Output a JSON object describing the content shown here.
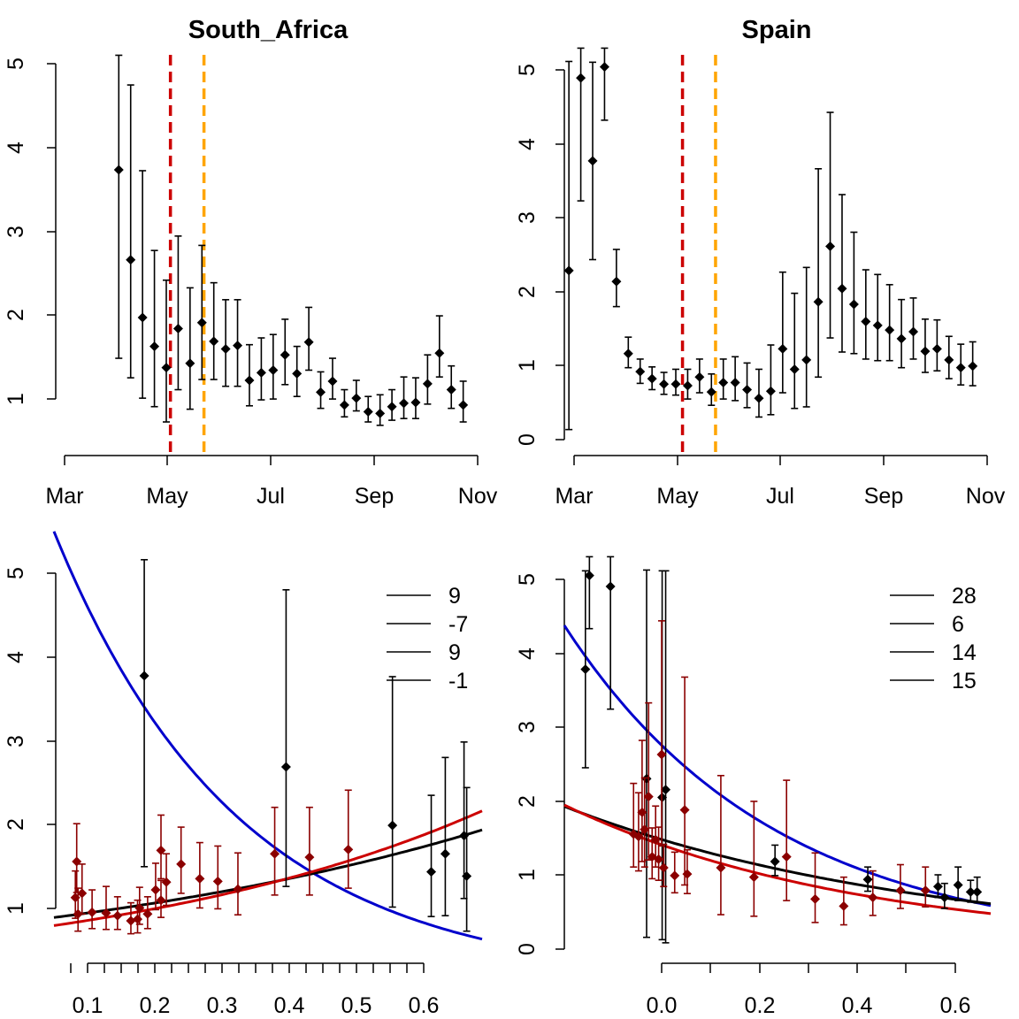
{
  "chart_data": [
    {
      "id": "sa_time",
      "type": "scatter",
      "title": "South_Africa",
      "x_ticks": [
        "Mar",
        "May",
        "Jul",
        "Sep",
        "Nov"
      ],
      "y_ticks": [
        "1",
        "2",
        "3",
        "4",
        "5"
      ],
      "xlim": [
        0,
        8
      ],
      "ylim": [
        0.35,
        5.05
      ],
      "grid": false,
      "vlines": [
        {
          "x": 2.05,
          "color": "#CC0000",
          "dash": true
        },
        {
          "x": 2.7,
          "color": "#FFA500",
          "dash": true
        }
      ],
      "points": [
        {
          "x": 1.05,
          "y": 3.57,
          "lo": 1.35,
          "hi": 4.92
        },
        {
          "x": 1.28,
          "y": 2.51,
          "lo": 1.12,
          "hi": 4.57
        },
        {
          "x": 1.51,
          "y": 1.83,
          "lo": 0.88,
          "hi": 3.56
        },
        {
          "x": 1.74,
          "y": 1.49,
          "lo": 0.78,
          "hi": 2.62
        },
        {
          "x": 1.97,
          "y": 1.24,
          "lo": 0.6,
          "hi": 2.27
        },
        {
          "x": 2.2,
          "y": 1.7,
          "lo": 0.98,
          "hi": 2.79
        },
        {
          "x": 2.43,
          "y": 1.29,
          "lo": 0.75,
          "hi": 2.18
        },
        {
          "x": 2.66,
          "y": 1.77,
          "lo": 1.1,
          "hi": 2.68
        },
        {
          "x": 2.89,
          "y": 1.55,
          "lo": 1.1,
          "hi": 2.24
        },
        {
          "x": 3.12,
          "y": 1.46,
          "lo": 1.02,
          "hi": 2.04
        },
        {
          "x": 3.35,
          "y": 1.5,
          "lo": 1.02,
          "hi": 2.04
        },
        {
          "x": 3.58,
          "y": 1.09,
          "lo": 0.79,
          "hi": 1.51
        },
        {
          "x": 3.81,
          "y": 1.18,
          "lo": 0.86,
          "hi": 1.59
        },
        {
          "x": 4.04,
          "y": 1.21,
          "lo": 0.87,
          "hi": 1.63
        },
        {
          "x": 4.27,
          "y": 1.39,
          "lo": 1.04,
          "hi": 1.81
        },
        {
          "x": 4.5,
          "y": 1.17,
          "lo": 0.9,
          "hi": 1.49
        },
        {
          "x": 4.73,
          "y": 1.54,
          "lo": 1.21,
          "hi": 1.95
        },
        {
          "x": 4.96,
          "y": 0.95,
          "lo": 0.76,
          "hi": 1.19
        },
        {
          "x": 5.19,
          "y": 1.08,
          "lo": 0.87,
          "hi": 1.35
        },
        {
          "x": 5.42,
          "y": 0.8,
          "lo": 0.66,
          "hi": 0.98
        },
        {
          "x": 5.65,
          "y": 0.88,
          "lo": 0.73,
          "hi": 1.09
        },
        {
          "x": 5.88,
          "y": 0.72,
          "lo": 0.6,
          "hi": 0.9
        },
        {
          "x": 6.11,
          "y": 0.7,
          "lo": 0.56,
          "hi": 0.92
        },
        {
          "x": 6.34,
          "y": 0.78,
          "lo": 0.62,
          "hi": 0.98
        },
        {
          "x": 6.57,
          "y": 0.82,
          "lo": 0.64,
          "hi": 1.13
        },
        {
          "x": 6.8,
          "y": 0.83,
          "lo": 0.64,
          "hi": 1.12
        },
        {
          "x": 7.03,
          "y": 1.05,
          "lo": 0.81,
          "hi": 1.39
        },
        {
          "x": 7.26,
          "y": 1.41,
          "lo": 1.13,
          "hi": 1.85
        },
        {
          "x": 7.49,
          "y": 0.98,
          "lo": 0.76,
          "hi": 1.26
        },
        {
          "x": 7.72,
          "y": 0.8,
          "lo": 0.6,
          "hi": 1.08
        }
      ]
    },
    {
      "id": "es_time",
      "type": "scatter",
      "title": "Spain",
      "x_ticks": [
        "Mar",
        "May",
        "Jul",
        "Sep",
        "Nov"
      ],
      "y_ticks": [
        "0",
        "1",
        "2",
        "3",
        "4",
        "5"
      ],
      "xlim": [
        0,
        8
      ],
      "ylim": [
        -0.1,
        5.05
      ],
      "grid": false,
      "vlines": [
        {
          "x": 2.1,
          "color": "#CC0000",
          "dash": true
        },
        {
          "x": 2.74,
          "color": "#FFA500",
          "dash": true
        }
      ],
      "points": [
        {
          "x": -0.1,
          "y": 2.16,
          "lo": 0.13,
          "hi": 4.83
        },
        {
          "x": 0.13,
          "y": 4.62,
          "lo": 3.05,
          "hi": 5.0
        },
        {
          "x": 0.36,
          "y": 3.56,
          "lo": 2.3,
          "hi": 4.82
        },
        {
          "x": 0.59,
          "y": 4.76,
          "lo": 4.08,
          "hi": 5.0
        },
        {
          "x": 0.82,
          "y": 2.02,
          "lo": 1.7,
          "hi": 2.43
        },
        {
          "x": 1.05,
          "y": 1.1,
          "lo": 0.92,
          "hi": 1.31
        },
        {
          "x": 1.28,
          "y": 0.87,
          "lo": 0.72,
          "hi": 1.03
        },
        {
          "x": 1.51,
          "y": 0.78,
          "lo": 0.64,
          "hi": 0.93
        },
        {
          "x": 1.74,
          "y": 0.71,
          "lo": 0.58,
          "hi": 0.86
        },
        {
          "x": 1.97,
          "y": 0.71,
          "lo": 0.57,
          "hi": 0.9
        },
        {
          "x": 2.2,
          "y": 0.69,
          "lo": 0.52,
          "hi": 0.9
        },
        {
          "x": 2.43,
          "y": 0.8,
          "lo": 0.6,
          "hi": 1.03
        },
        {
          "x": 2.66,
          "y": 0.61,
          "lo": 0.44,
          "hi": 0.84
        },
        {
          "x": 2.89,
          "y": 0.73,
          "lo": 0.52,
          "hi": 1.03
        },
        {
          "x": 3.12,
          "y": 0.73,
          "lo": 0.5,
          "hi": 1.06
        },
        {
          "x": 3.35,
          "y": 0.64,
          "lo": 0.41,
          "hi": 0.98
        },
        {
          "x": 3.58,
          "y": 0.53,
          "lo": 0.29,
          "hi": 0.9
        },
        {
          "x": 3.81,
          "y": 0.62,
          "lo": 0.32,
          "hi": 1.21
        },
        {
          "x": 4.04,
          "y": 1.16,
          "lo": 0.6,
          "hi": 2.14
        },
        {
          "x": 4.27,
          "y": 0.9,
          "lo": 0.4,
          "hi": 1.87
        },
        {
          "x": 4.5,
          "y": 1.02,
          "lo": 0.42,
          "hi": 2.2
        },
        {
          "x": 4.73,
          "y": 1.76,
          "lo": 0.8,
          "hi": 3.46
        },
        {
          "x": 4.96,
          "y": 2.47,
          "lo": 1.3,
          "hi": 4.18
        },
        {
          "x": 5.19,
          "y": 1.93,
          "lo": 1.12,
          "hi": 3.13
        },
        {
          "x": 5.42,
          "y": 1.73,
          "lo": 1.1,
          "hi": 2.65
        },
        {
          "x": 5.65,
          "y": 1.51,
          "lo": 1.03,
          "hi": 2.17
        },
        {
          "x": 5.88,
          "y": 1.46,
          "lo": 1.01,
          "hi": 2.11
        },
        {
          "x": 6.11,
          "y": 1.4,
          "lo": 1.01,
          "hi": 1.98
        },
        {
          "x": 6.34,
          "y": 1.29,
          "lo": 0.92,
          "hi": 1.79
        },
        {
          "x": 6.57,
          "y": 1.38,
          "lo": 1.03,
          "hi": 1.81
        },
        {
          "x": 6.8,
          "y": 1.13,
          "lo": 0.86,
          "hi": 1.54
        },
        {
          "x": 7.03,
          "y": 1.16,
          "lo": 0.88,
          "hi": 1.53
        },
        {
          "x": 7.26,
          "y": 1.02,
          "lo": 0.78,
          "hi": 1.32
        },
        {
          "x": 7.49,
          "y": 0.92,
          "lo": 0.7,
          "hi": 1.22
        },
        {
          "x": 7.72,
          "y": 0.94,
          "lo": 0.69,
          "hi": 1.25
        }
      ]
    },
    {
      "id": "sa_fit",
      "type": "scatter",
      "title": "",
      "x_ticks": [
        "0.1",
        "0.2",
        "0.3",
        "0.4",
        "0.5",
        "0.6"
      ],
      "x_tick_values": [
        0.1,
        0.2,
        0.3,
        0.4,
        0.5,
        0.6
      ],
      "y_ticks": [
        "1",
        "2",
        "3",
        "4",
        "5"
      ],
      "xlim": [
        0.05,
        0.69
      ],
      "ylim": [
        0.35,
        5.0
      ],
      "grid": false,
      "legend": {
        "position": "top-right",
        "entries": [
          "9",
          "-7",
          "9",
          "-1"
        ]
      },
      "series": [
        {
          "color": "#000000",
          "points": [
            {
              "x": 0.185,
              "y": 3.57,
              "lo": 1.35,
              "hi": 4.92
            },
            {
              "x": 0.397,
              "y": 2.51,
              "lo": 1.12,
              "hi": 4.57
            },
            {
              "x": 0.556,
              "y": 1.83,
              "lo": 0.88,
              "hi": 3.56
            },
            {
              "x": 0.614,
              "y": 1.29,
              "lo": 0.77,
              "hi": 2.18
            },
            {
              "x": 0.635,
              "y": 1.5,
              "lo": 0.78,
              "hi": 2.62
            },
            {
              "x": 0.663,
              "y": 1.71,
              "lo": 0.98,
              "hi": 2.8
            },
            {
              "x": 0.667,
              "y": 1.24,
              "lo": 0.6,
              "hi": 2.27
            }
          ]
        },
        {
          "color": "#8B0000",
          "points": [
            {
              "x": 0.084,
              "y": 1.41,
              "lo": 1.05,
              "hi": 1.85
            },
            {
              "x": 0.082,
              "y": 0.99,
              "lo": 0.75,
              "hi": 1.3
            },
            {
              "x": 0.086,
              "y": 0.8,
              "lo": 0.6,
              "hi": 1.1
            },
            {
              "x": 0.092,
              "y": 1.04,
              "lo": 0.8,
              "hi": 1.38
            },
            {
              "x": 0.107,
              "y": 0.82,
              "lo": 0.63,
              "hi": 1.08
            },
            {
              "x": 0.128,
              "y": 0.81,
              "lo": 0.62,
              "hi": 1.12
            },
            {
              "x": 0.145,
              "y": 0.78,
              "lo": 0.62,
              "hi": 1.0
            },
            {
              "x": 0.165,
              "y": 0.72,
              "lo": 0.57,
              "hi": 0.93
            },
            {
              "x": 0.175,
              "y": 0.74,
              "lo": 0.58,
              "hi": 0.96
            },
            {
              "x": 0.178,
              "y": 0.87,
              "lo": 0.68,
              "hi": 1.11
            },
            {
              "x": 0.19,
              "y": 0.8,
              "lo": 0.63,
              "hi": 1.0
            },
            {
              "x": 0.202,
              "y": 1.08,
              "lo": 0.85,
              "hi": 1.39
            },
            {
              "x": 0.21,
              "y": 1.54,
              "lo": 1.21,
              "hi": 1.95
            },
            {
              "x": 0.21,
              "y": 0.96,
              "lo": 0.76,
              "hi": 1.19
            },
            {
              "x": 0.218,
              "y": 1.17,
              "lo": 0.9,
              "hi": 1.5
            },
            {
              "x": 0.24,
              "y": 1.38,
              "lo": 1.04,
              "hi": 1.81
            },
            {
              "x": 0.268,
              "y": 1.21,
              "lo": 0.87,
              "hi": 1.63
            },
            {
              "x": 0.295,
              "y": 1.18,
              "lo": 0.86,
              "hi": 1.59
            },
            {
              "x": 0.325,
              "y": 1.09,
              "lo": 0.79,
              "hi": 1.51
            },
            {
              "x": 0.38,
              "y": 1.5,
              "lo": 1.02,
              "hi": 2.04
            },
            {
              "x": 0.432,
              "y": 1.46,
              "lo": 1.02,
              "hi": 2.04
            },
            {
              "x": 0.49,
              "y": 1.55,
              "lo": 1.1,
              "hi": 2.24
            }
          ]
        }
      ],
      "curves": [
        {
          "color": "#0000CC",
          "a": 6.3,
          "b": -3.65
        },
        {
          "color": "#000000",
          "a": 0.71,
          "b": 1.33
        },
        {
          "color": "#CC0000",
          "a": 0.61,
          "b": 1.72
        }
      ]
    },
    {
      "id": "es_fit",
      "type": "scatter",
      "title": "",
      "x_ticks": [
        "0.0",
        "0.2",
        "0.4",
        "0.6"
      ],
      "x_tick_values": [
        0.0,
        0.2,
        0.4,
        0.6
      ],
      "y_ticks": [
        "0",
        "1",
        "2",
        "3",
        "4",
        "5"
      ],
      "xlim": [
        -0.2,
        0.65
      ],
      "ylim": [
        -0.1,
        5.05
      ],
      "grid": false,
      "legend": {
        "position": "top-right",
        "entries": [
          "28",
          "6",
          "14",
          "15"
        ]
      },
      "series": [
        {
          "color": "#000000",
          "points": [
            {
              "x": -0.158,
              "y": 3.56,
              "lo": 2.3,
              "hi": 4.82
            },
            {
              "x": -0.15,
              "y": 4.76,
              "lo": 4.08,
              "hi": 5.0
            },
            {
              "x": -0.108,
              "y": 4.62,
              "lo": 3.05,
              "hi": 5.0
            },
            {
              "x": -0.036,
              "y": 2.16,
              "lo": 0.13,
              "hi": 4.83
            },
            {
              "x": -0.005,
              "y": 1.92,
              "lo": 0.1,
              "hi": 4.82
            },
            {
              "x": 0.002,
              "y": 2.02,
              "lo": 0.06,
              "hi": 4.82
            },
            {
              "x": 0.22,
              "y": 1.1,
              "lo": 0.92,
              "hi": 1.31
            },
            {
              "x": 0.405,
              "y": 0.87,
              "lo": 0.72,
              "hi": 1.03
            },
            {
              "x": 0.545,
              "y": 0.78,
              "lo": 0.64,
              "hi": 0.93
            },
            {
              "x": 0.558,
              "y": 0.64,
              "lo": 0.5,
              "hi": 0.82
            },
            {
              "x": 0.585,
              "y": 0.8,
              "lo": 0.6,
              "hi": 1.03
            },
            {
              "x": 0.61,
              "y": 0.71,
              "lo": 0.58,
              "hi": 0.86
            },
            {
              "x": 0.623,
              "y": 0.71,
              "lo": 0.57,
              "hi": 0.9
            }
          ]
        },
        {
          "color": "#8B0000",
          "points": [
            {
              "x": -0.062,
              "y": 1.45,
              "lo": 1.03,
              "hi": 2.1
            },
            {
              "x": -0.052,
              "y": 1.42,
              "lo": 0.98,
              "hi": 1.98
            },
            {
              "x": -0.045,
              "y": 1.73,
              "lo": 1.1,
              "hi": 2.65
            },
            {
              "x": -0.04,
              "y": 1.51,
              "lo": 1.03,
              "hi": 2.17
            },
            {
              "x": -0.032,
              "y": 1.93,
              "lo": 1.12,
              "hi": 3.13
            },
            {
              "x": -0.025,
              "y": 1.16,
              "lo": 0.88,
              "hi": 1.53
            },
            {
              "x": -0.018,
              "y": 1.38,
              "lo": 1.03,
              "hi": 1.81
            },
            {
              "x": -0.012,
              "y": 1.13,
              "lo": 0.86,
              "hi": 1.54
            },
            {
              "x": -0.006,
              "y": 2.47,
              "lo": 1.3,
              "hi": 4.18
            },
            {
              "x": -0.002,
              "y": 1.02,
              "lo": 0.78,
              "hi": 1.32
            },
            {
              "x": 0.02,
              "y": 0.92,
              "lo": 0.7,
              "hi": 1.22
            },
            {
              "x": 0.04,
              "y": 1.76,
              "lo": 0.8,
              "hi": 3.46
            },
            {
              "x": 0.045,
              "y": 0.94,
              "lo": 0.69,
              "hi": 1.25
            },
            {
              "x": 0.112,
              "y": 1.02,
              "lo": 0.42,
              "hi": 2.2
            },
            {
              "x": 0.178,
              "y": 0.9,
              "lo": 0.4,
              "hi": 1.87
            },
            {
              "x": 0.243,
              "y": 1.16,
              "lo": 0.6,
              "hi": 2.14
            },
            {
              "x": 0.3,
              "y": 0.62,
              "lo": 0.32,
              "hi": 1.21
            },
            {
              "x": 0.357,
              "y": 0.53,
              "lo": 0.29,
              "hi": 0.9
            },
            {
              "x": 0.415,
              "y": 0.64,
              "lo": 0.41,
              "hi": 0.98
            },
            {
              "x": 0.47,
              "y": 0.73,
              "lo": 0.5,
              "hi": 1.06
            },
            {
              "x": 0.52,
              "y": 0.73,
              "lo": 0.52,
              "hi": 1.03
            }
          ]
        }
      ],
      "curves": [
        {
          "color": "#0000CC",
          "a": 2.55,
          "b": -2.4
        },
        {
          "color": "#000000",
          "a": 1.37,
          "b": -1.38
        },
        {
          "color": "#CC0000",
          "a": 1.3,
          "b": -1.69
        }
      ]
    }
  ]
}
